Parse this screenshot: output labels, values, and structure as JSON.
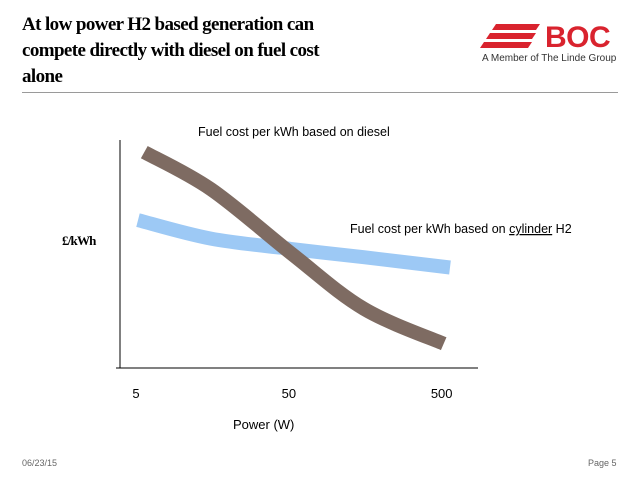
{
  "slide": {
    "title_lines": [
      "At low power H2 based generation can",
      "compete directly with diesel on fuel cost",
      "alone"
    ],
    "logo": {
      "name": "BOC",
      "subtitle": "A Member of The Linde Group",
      "color": "#d9232e"
    },
    "footer": {
      "date": "06/23/15",
      "page": "Page 5"
    }
  },
  "chart_data": {
    "type": "line",
    "title": "",
    "xlabel": "Power (W)",
    "ylabel": "£/kWh",
    "x_scale": "log",
    "x_ticks": [
      "5",
      "50",
      "500"
    ],
    "x_tick_values": [
      5,
      50,
      500
    ],
    "xlim": [
      5,
      700
    ],
    "y_ticks": [],
    "grid": false,
    "legend": "none",
    "series": [
      {
        "label_prefix": "Fuel cost  per kWh based on diesel",
        "label_underlined": "",
        "label_suffix": "",
        "color": "#7e6b62",
        "x": [
          5.5,
          15,
          50,
          150,
          500
        ],
        "y": [
          0.98,
          0.8,
          0.49,
          0.22,
          0.05
        ]
      },
      {
        "label_prefix": "Fuel cost  per kWh based on ",
        "label_underlined": "cylinder",
        "label_suffix": " H2",
        "color": "#9dc9f5",
        "x": [
          5,
          15,
          50,
          150,
          550
        ],
        "y": [
          0.65,
          0.56,
          0.51,
          0.47,
          0.42
        ]
      }
    ]
  }
}
